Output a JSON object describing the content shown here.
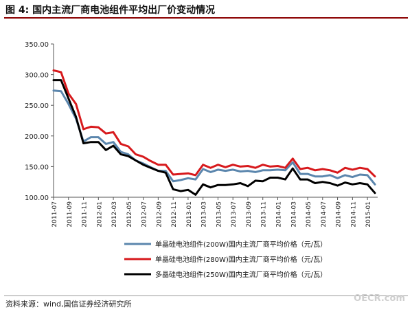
{
  "title": "图 4: 国内主流厂商电池组件平均出厂价变动情况",
  "source": "资料来源：wind,国信证券经济研究所",
  "watermark": "OECR.com",
  "chart_data": {
    "type": "line",
    "title": "图 4: 国内主流厂商电池组件平均出厂价变动情况",
    "xlabel": "",
    "ylabel": "",
    "ylim": [
      100,
      350
    ],
    "yticks": [
      "350.00",
      "300.00",
      "250.00",
      "200.00",
      "150.00",
      "100.00"
    ],
    "ytick_values": [
      350,
      300,
      250,
      200,
      150,
      100
    ],
    "xtick_labels": [
      "2011-07",
      "2011-09",
      "2011-11",
      "2012-01",
      "2012-03",
      "2012-05",
      "2012-07",
      "2012-09",
      "2012-11",
      "2013-01",
      "2013-03",
      "2013-05",
      "2013-07",
      "2013-09",
      "2013-11",
      "2014-01",
      "2014-03",
      "2014-05",
      "2014-07",
      "2014-09",
      "2014-11",
      "2015-01"
    ],
    "legend_position": "bottom",
    "grid": false,
    "series": [
      {
        "name": "单晶硅电池组件(200W)国内主流厂商平均价格（元/瓦）",
        "color": "#5b86ad",
        "values": [
          274,
          273,
          252,
          228,
          191,
          198,
          198,
          187,
          190,
          174,
          170,
          160,
          155,
          149,
          143,
          143,
          126,
          128,
          131,
          129,
          146,
          141,
          145,
          143,
          145,
          142,
          143,
          141,
          144,
          144,
          145,
          144,
          157,
          138,
          138,
          134,
          134,
          136,
          131,
          136,
          133,
          137,
          136,
          121
        ]
      },
      {
        "name": "单晶硅电池组件(280W)国内主流厂商平均价格（元/瓦）",
        "color": "#d7191c",
        "values": [
          307,
          304,
          269,
          252,
          211,
          215,
          214,
          204,
          206,
          187,
          183,
          170,
          166,
          159,
          153,
          153,
          137,
          138,
          139,
          136,
          153,
          148,
          153,
          149,
          153,
          150,
          151,
          148,
          153,
          150,
          151,
          148,
          163,
          146,
          148,
          144,
          146,
          144,
          140,
          148,
          145,
          148,
          146,
          134
        ]
      },
      {
        "name": "多晶硅电池组件(250W)国内主流厂商平均价格（元/瓦）",
        "color": "#000000",
        "values": [
          291,
          291,
          261,
          231,
          188,
          190,
          190,
          177,
          184,
          170,
          167,
          160,
          153,
          148,
          143,
          140,
          113,
          110,
          112,
          104,
          121,
          116,
          120,
          120,
          121,
          123,
          118,
          127,
          126,
          132,
          132,
          129,
          147,
          129,
          129,
          123,
          125,
          123,
          119,
          124,
          121,
          123,
          121,
          107
        ]
      }
    ]
  }
}
